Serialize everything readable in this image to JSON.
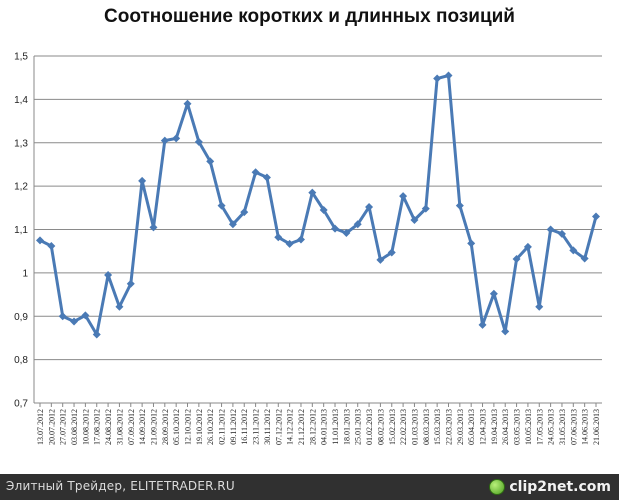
{
  "chart_data": {
    "type": "line",
    "title": "Соотношение коротких и длинных позиций",
    "xlabel": "",
    "ylabel": "",
    "ylim": [
      0.7,
      1.5
    ],
    "ytick_step": 0.1,
    "yticks": [
      "0,7",
      "0,8",
      "0,9",
      "1",
      "1,1",
      "1,2",
      "1,3",
      "1,4",
      "1,5"
    ],
    "grid": true,
    "legend": "none",
    "series_color": "#4a7ab5",
    "x": [
      "13.07.2012",
      "20.07.2012",
      "27.07.2012",
      "03.08.2012",
      "10.08.2012",
      "17.08.2012",
      "24.08.2012",
      "31.08.2012",
      "07.09.2012",
      "14.09.2012",
      "21.09.2012",
      "28.09.2012",
      "05.10.2012",
      "12.10.2012",
      "19.10.2012",
      "26.10.2012",
      "02.11.2012",
      "09.11.2012",
      "16.11.2012",
      "23.11.2012",
      "30.11.2012",
      "07.12.2012",
      "14.12.2012",
      "21.12.2012",
      "28.12.2012",
      "04.01.2013",
      "11.01.2013",
      "18.01.2013",
      "25.01.2013",
      "01.02.2013",
      "08.02.2013",
      "15.02.2013",
      "22.02.2013",
      "01.03.2013",
      "08.03.2013",
      "15.03.2013",
      "22.03.2013",
      "29.03.2013",
      "05.04.2013",
      "12.04.2013",
      "19.04.2013",
      "26.04.2013",
      "03.05.2013",
      "10.05.2013",
      "17.05.2013",
      "24.05.2013",
      "31.05.2013",
      "07.06.2013",
      "14.06.2013",
      "21.06.2013"
    ],
    "series": [
      {
        "values": [
          1.075,
          1.062,
          0.9,
          0.888,
          0.902,
          0.858,
          0.995,
          0.922,
          0.975,
          1.212,
          1.105,
          1.305,
          1.31,
          1.39,
          1.302,
          1.257,
          1.155,
          1.112,
          1.14,
          1.232,
          1.22,
          1.082,
          1.067,
          1.077,
          1.185,
          1.145,
          1.102,
          1.092,
          1.112,
          1.152,
          1.03,
          1.047,
          1.177,
          1.122,
          1.148,
          1.448,
          1.455,
          1.155,
          1.068,
          0.88,
          0.952,
          0.865,
          1.032,
          1.06,
          0.922,
          1.1,
          1.09,
          1.052,
          1.033,
          1.13
        ]
      }
    ]
  },
  "footer": {
    "caption": "Элитный Трейдер, ELITETRADER.RU",
    "watermark_text": "clip2net.com"
  }
}
